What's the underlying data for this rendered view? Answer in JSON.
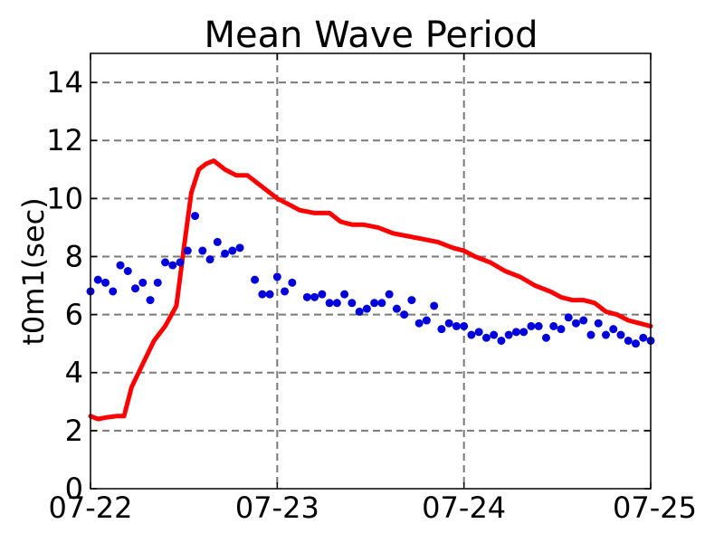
{
  "chart_data": {
    "type": "line",
    "title": "Mean Wave Period",
    "xlabel": "",
    "ylabel": "t0m1(sec)",
    "x_tick_labels": [
      "07-22",
      "07-23",
      "07-24",
      "07-25"
    ],
    "y_ticks": [
      0,
      2,
      4,
      6,
      8,
      10,
      12,
      14
    ],
    "xlim": [
      "07-22",
      "07-25"
    ],
    "ylim": [
      0,
      15
    ],
    "grid": true,
    "grid_style": "dashed",
    "legend": "none",
    "series": [
      {
        "kind": "line",
        "color": "#ff0000",
        "x": [
          0.0,
          0.04,
          0.08,
          0.14,
          0.18,
          0.22,
          0.28,
          0.34,
          0.4,
          0.46,
          0.5,
          0.54,
          0.58,
          0.62,
          0.66,
          0.72,
          0.78,
          0.84,
          0.9,
          0.96,
          1.0,
          1.06,
          1.12,
          1.2,
          1.28,
          1.34,
          1.4,
          1.46,
          1.54,
          1.62,
          1.7,
          1.78,
          1.86,
          1.94,
          2.0,
          2.06,
          2.14,
          2.22,
          2.3,
          2.38,
          2.46,
          2.52,
          2.58,
          2.64,
          2.7,
          2.76,
          2.82,
          2.88,
          2.94,
          3.0
        ],
        "y": [
          2.5,
          2.4,
          2.45,
          2.5,
          2.5,
          3.5,
          4.3,
          5.1,
          5.6,
          6.3,
          8.3,
          10.2,
          11.0,
          11.2,
          11.3,
          11.0,
          10.8,
          10.8,
          10.5,
          10.2,
          10.0,
          9.8,
          9.6,
          9.5,
          9.5,
          9.2,
          9.1,
          9.1,
          9.0,
          8.8,
          8.7,
          8.6,
          8.5,
          8.3,
          8.2,
          8.0,
          7.8,
          7.5,
          7.3,
          7.0,
          6.8,
          6.6,
          6.5,
          6.5,
          6.4,
          6.1,
          6.0,
          5.8,
          5.7,
          5.6
        ]
      },
      {
        "kind": "scatter",
        "color": "#0000dd",
        "x": [
          0.0,
          0.04,
          0.08,
          0.12,
          0.16,
          0.2,
          0.24,
          0.28,
          0.32,
          0.36,
          0.4,
          0.44,
          0.48,
          0.52,
          0.56,
          0.6,
          0.64,
          0.68,
          0.72,
          0.76,
          0.8,
          0.88,
          0.92,
          0.96,
          1.0,
          1.04,
          1.08,
          1.16,
          1.2,
          1.24,
          1.28,
          1.32,
          1.36,
          1.4,
          1.44,
          1.48,
          1.52,
          1.56,
          1.6,
          1.64,
          1.68,
          1.72,
          1.76,
          1.8,
          1.84,
          1.88,
          1.92,
          1.96,
          2.0,
          2.04,
          2.08,
          2.12,
          2.16,
          2.2,
          2.24,
          2.28,
          2.32,
          2.36,
          2.4,
          2.44,
          2.48,
          2.52,
          2.56,
          2.6,
          2.64,
          2.68,
          2.72,
          2.76,
          2.8,
          2.84,
          2.88,
          2.92,
          2.96,
          3.0
        ],
        "y": [
          6.8,
          7.2,
          7.1,
          6.8,
          7.7,
          7.5,
          6.9,
          7.1,
          6.5,
          7.1,
          7.8,
          7.7,
          7.8,
          8.2,
          9.4,
          8.2,
          7.9,
          8.5,
          8.1,
          8.2,
          8.3,
          7.2,
          6.7,
          6.7,
          7.3,
          6.8,
          7.1,
          6.6,
          6.6,
          6.7,
          6.4,
          6.4,
          6.7,
          6.4,
          6.1,
          6.2,
          6.4,
          6.4,
          6.7,
          6.2,
          6.0,
          6.5,
          5.7,
          5.8,
          6.3,
          5.5,
          5.7,
          5.6,
          5.6,
          5.3,
          5.4,
          5.2,
          5.3,
          5.1,
          5.3,
          5.4,
          5.4,
          5.6,
          5.6,
          5.2,
          5.6,
          5.5,
          5.9,
          5.7,
          5.8,
          5.3,
          5.7,
          5.3,
          5.5,
          5.3,
          5.1,
          5.0,
          5.2,
          5.1
        ]
      }
    ]
  }
}
